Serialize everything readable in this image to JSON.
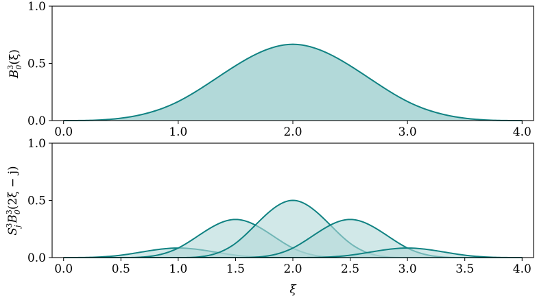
{
  "chart_data": [
    {
      "type": "area",
      "title": "",
      "xlabel": "",
      "ylabel": "B03(ξ)",
      "ylabel_parts": {
        "base": "B",
        "sup": "3",
        "sub": "0",
        "arg": "(ξ)"
      },
      "xlim": [
        -0.1,
        4.1
      ],
      "ylim": [
        0.0,
        1.0
      ],
      "x_ticks": [
        0.0,
        1.0,
        2.0,
        3.0,
        4.0
      ],
      "x_tick_labels": [
        "0.0",
        "1.0",
        "2.0",
        "3.0",
        "4.0"
      ],
      "y_ticks": [
        0.0,
        0.5,
        1.0
      ],
      "y_tick_labels": [
        "0.0",
        "0.5",
        "1.0"
      ],
      "grid": false,
      "series": [
        {
          "function": "cubic B-spline on knots 0,1,2,3,4",
          "x": [
            0.0,
            0.5,
            1.0,
            1.5,
            2.0,
            2.5,
            3.0,
            3.5,
            4.0
          ],
          "values": [
            0.0,
            0.0208,
            0.1667,
            0.4792,
            0.6667,
            0.4792,
            0.1667,
            0.0208,
            0.0
          ],
          "color": "#108282",
          "fill": "#b2d9d9"
        }
      ]
    },
    {
      "type": "area",
      "title": "",
      "xlabel": "ξ",
      "ylabel": "Sj3B03(2ξ − j)",
      "ylabel_parts": {
        "p1": "S",
        "p1_sub": "j",
        "p1_sup": "3",
        "p2": "B",
        "p2_sub": "0",
        "p2_sup": "3",
        "arg": "(2ξ − j)"
      },
      "xlim": [
        -0.1,
        4.1
      ],
      "ylim": [
        0.0,
        1.0
      ],
      "x_ticks": [
        0.0,
        0.5,
        1.0,
        1.5,
        2.0,
        2.5,
        3.0,
        3.5,
        4.0
      ],
      "x_tick_labels": [
        "0.0",
        "0.5",
        "1.0",
        "1.5",
        "2.0",
        "2.5",
        "3.0",
        "3.5",
        "4.0"
      ],
      "y_ticks": [
        0.0,
        0.5,
        1.0
      ],
      "y_tick_labels": [
        "0.0",
        "0.5",
        "1.0"
      ],
      "grid": false,
      "series": [
        {
          "j": 0,
          "weight": 0.125,
          "x_range": [
            0.0,
            2.0
          ],
          "peak_x": 1.0,
          "peak_y": 0.0833,
          "color": "#108282",
          "fill": "#b2d9d9"
        },
        {
          "j": 1,
          "weight": 0.5,
          "x_range": [
            0.5,
            2.5
          ],
          "peak_x": 1.5,
          "peak_y": 0.3333,
          "color": "#108282",
          "fill": "#b2d9d9"
        },
        {
          "j": 2,
          "weight": 0.75,
          "x_range": [
            1.0,
            3.0
          ],
          "peak_x": 2.0,
          "peak_y": 0.5,
          "color": "#108282",
          "fill": "#b2d9d9"
        },
        {
          "j": 3,
          "weight": 0.5,
          "x_range": [
            1.5,
            3.5
          ],
          "peak_x": 2.5,
          "peak_y": 0.3333,
          "color": "#108282",
          "fill": "#b2d9d9"
        },
        {
          "j": 4,
          "weight": 0.125,
          "x_range": [
            2.0,
            4.0
          ],
          "peak_x": 3.0,
          "peak_y": 0.0833,
          "color": "#108282",
          "fill": "#b2d9d9"
        }
      ]
    }
  ]
}
